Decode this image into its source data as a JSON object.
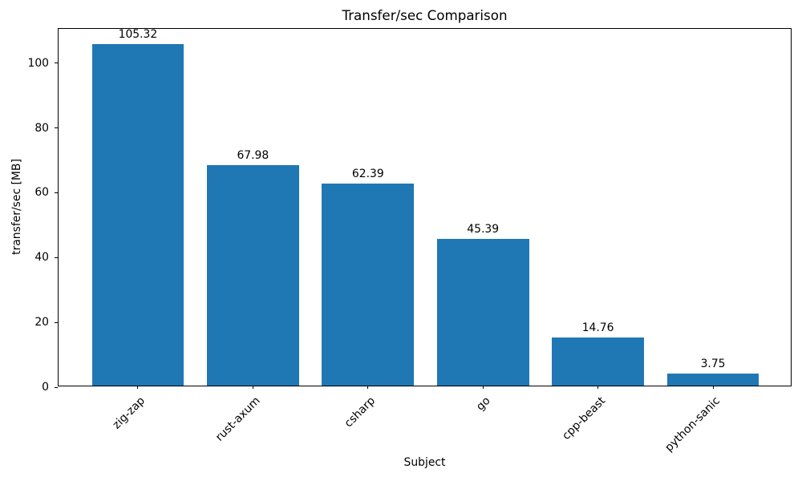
{
  "chart_data": {
    "type": "bar",
    "title": "Transfer/sec Comparison",
    "xlabel": "Subject",
    "ylabel": "transfer/sec [MB]",
    "categories": [
      "zig-zap",
      "rust-axum",
      "csharp",
      "go",
      "cpp-beast",
      "python-sanic"
    ],
    "values": [
      105.32,
      67.98,
      62.39,
      45.39,
      14.76,
      3.75
    ],
    "bar_labels": [
      "105.32",
      "67.98",
      "62.39",
      "45.39",
      "14.76",
      "3.75"
    ],
    "yticks": [
      0,
      20,
      40,
      60,
      80,
      100
    ],
    "ylim": [
      0,
      110.59
    ],
    "bar_color": "#1f77b4",
    "x_tick_rotation_deg": 45,
    "grid": false,
    "legend_position": "none"
  }
}
